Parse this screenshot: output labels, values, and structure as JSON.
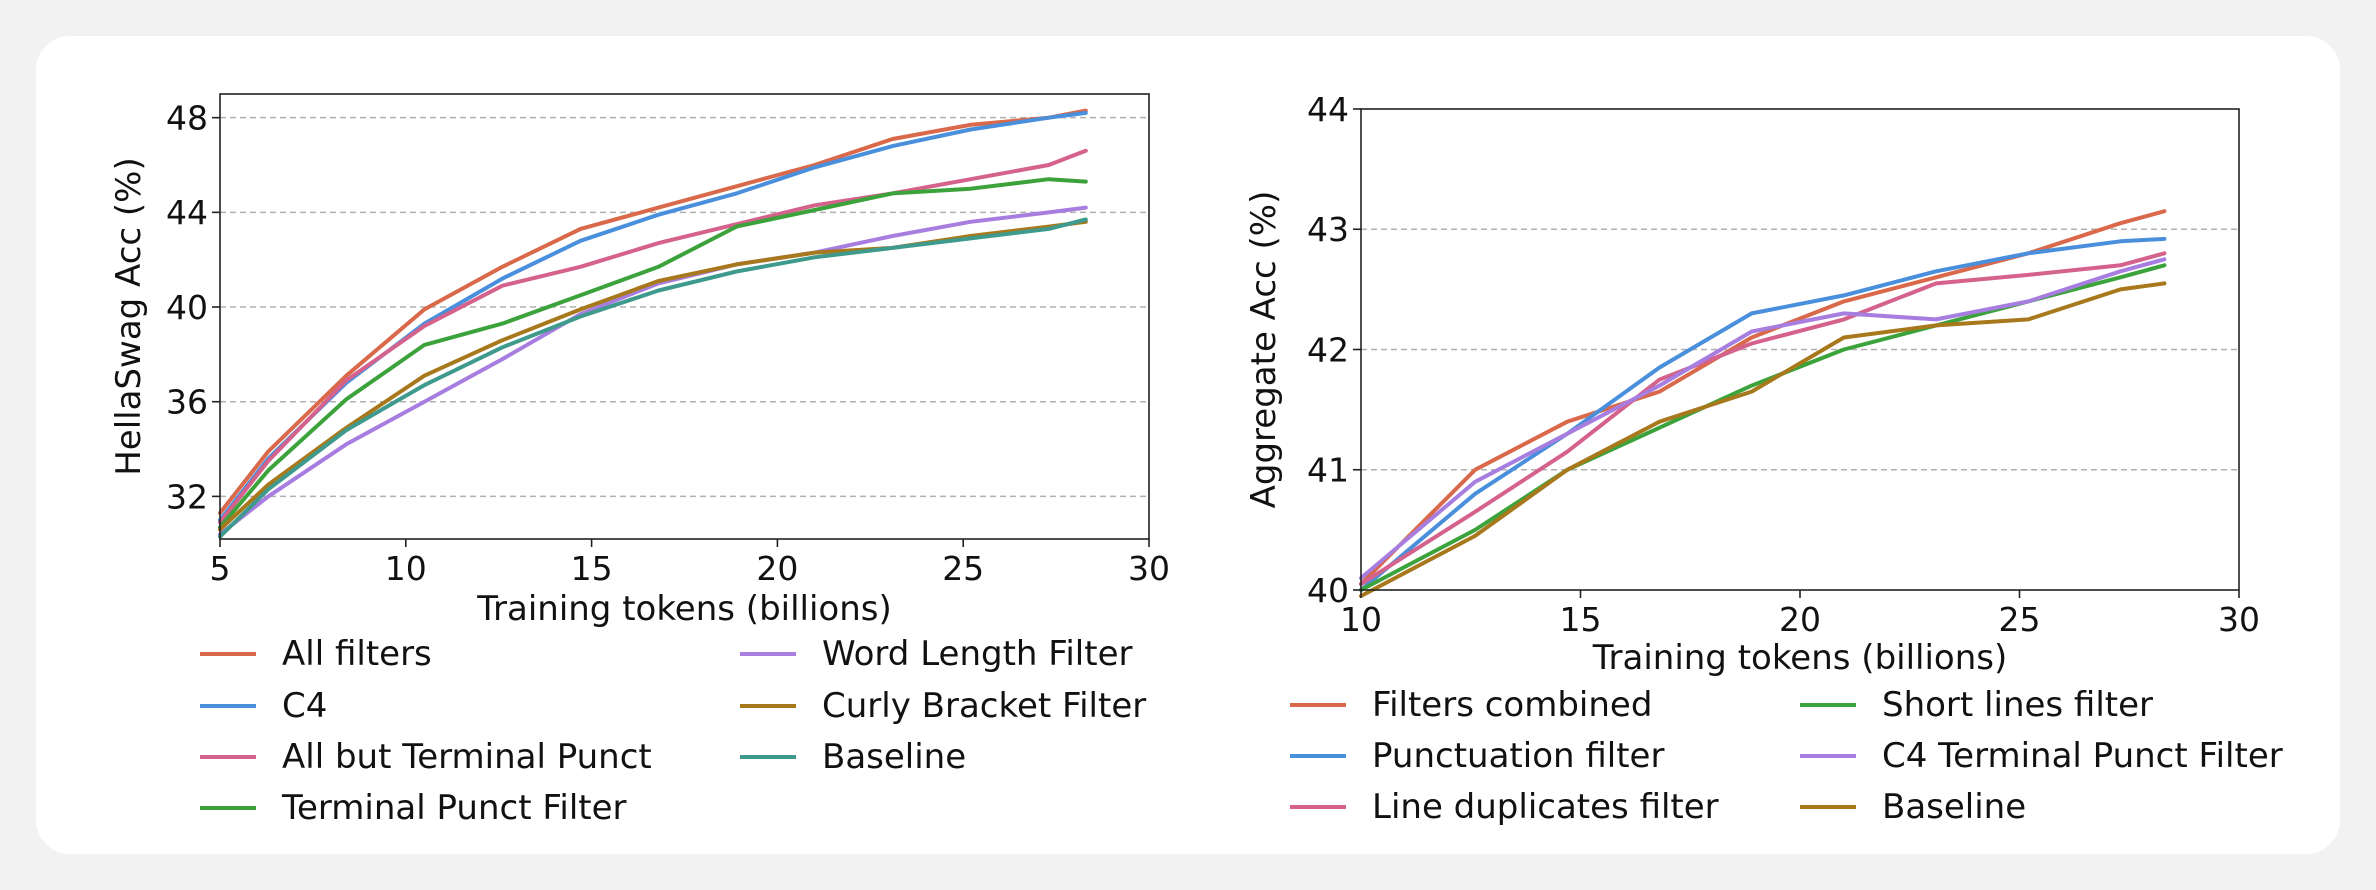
{
  "chart_data": [
    {
      "type": "line",
      "xlabel": "Training tokens (billions)",
      "ylabel": "HellaSwag Acc (%)",
      "xlim": [
        5,
        30
      ],
      "ylim": [
        30.2,
        49
      ],
      "xticks": [
        5,
        10,
        15,
        20,
        25,
        30
      ],
      "yticks": [
        32,
        36,
        40,
        44,
        48
      ],
      "grid": "horizontal dashed",
      "legend": "below, two columns",
      "series": [
        {
          "name": "All filters",
          "color": "#d9694a",
          "x": [
            5,
            6.3,
            8.4,
            10.5,
            12.6,
            14.7,
            16.8,
            18.9,
            21,
            23.1,
            25.2,
            27.3,
            28.3
          ],
          "y": [
            31.3,
            33.9,
            37.1,
            39.9,
            41.7,
            43.3,
            44.2,
            45.1,
            46.0,
            47.1,
            47.7,
            48.0,
            48.3
          ]
        },
        {
          "name": "C4",
          "color": "#4a8fdc",
          "x": [
            5,
            6.3,
            8.4,
            10.5,
            12.6,
            14.7,
            16.8,
            18.9,
            21,
            23.1,
            25.2,
            27.3,
            28.3
          ],
          "y": [
            31.0,
            33.6,
            36.8,
            39.3,
            41.2,
            42.8,
            43.9,
            44.8,
            45.9,
            46.8,
            47.5,
            48.0,
            48.2
          ]
        },
        {
          "name": "All but Terminal Punct",
          "color": "#d4628c",
          "x": [
            5,
            6.3,
            8.4,
            10.5,
            12.6,
            14.7,
            16.8,
            18.9,
            21,
            23.1,
            25.2,
            27.3,
            28.3
          ],
          "y": [
            30.9,
            33.5,
            36.9,
            39.2,
            40.9,
            41.7,
            42.7,
            43.5,
            44.3,
            44.8,
            45.4,
            46.0,
            46.6
          ]
        },
        {
          "name": "Terminal Punct Filter",
          "color": "#3ca33c",
          "x": [
            5,
            6.3,
            8.4,
            10.5,
            12.6,
            14.7,
            16.8,
            18.9,
            21,
            23.1,
            25.2,
            27.3,
            28.3
          ],
          "y": [
            30.7,
            33.1,
            36.1,
            38.4,
            39.3,
            40.5,
            41.7,
            43.4,
            44.1,
            44.8,
            45.0,
            45.4,
            45.3
          ]
        },
        {
          "name": "Word Length Filter",
          "color": "#a77ee0",
          "x": [
            5,
            6.3,
            8.4,
            10.5,
            12.6,
            14.7,
            16.8,
            18.9,
            21,
            23.1,
            25.2,
            27.3,
            28.3
          ],
          "y": [
            30.4,
            32.0,
            34.2,
            36.0,
            37.8,
            39.7,
            41.0,
            41.8,
            42.3,
            43.0,
            43.6,
            44.0,
            44.2
          ]
        },
        {
          "name": "Curly Bracket Filter",
          "color": "#a8781c",
          "x": [
            5,
            6.3,
            8.4,
            10.5,
            12.6,
            14.7,
            16.8,
            18.9,
            21,
            23.1,
            25.2,
            27.3,
            28.3
          ],
          "y": [
            30.6,
            32.5,
            34.9,
            37.1,
            38.6,
            39.9,
            41.1,
            41.8,
            42.3,
            42.5,
            43.0,
            43.4,
            43.6
          ]
        },
        {
          "name": "Baseline",
          "color": "#3e9a8c",
          "x": [
            5,
            6.3,
            8.4,
            10.5,
            12.6,
            14.7,
            16.8,
            18.9,
            21,
            23.1,
            25.2,
            27.3,
            28.3
          ],
          "y": [
            30.3,
            32.3,
            34.8,
            36.7,
            38.3,
            39.6,
            40.7,
            41.5,
            42.1,
            42.5,
            42.9,
            43.3,
            43.7
          ]
        }
      ],
      "legend_layout": [
        [
          "All filters",
          "C4",
          "All but Terminal Punct",
          "Terminal Punct Filter"
        ],
        [
          "Word Length Filter",
          "Curly Bracket Filter",
          "Baseline"
        ]
      ]
    },
    {
      "type": "line",
      "xlabel": "Training tokens (billions)",
      "ylabel": "Aggregate Acc (%)",
      "xlim": [
        10,
        30
      ],
      "ylim": [
        40,
        44
      ],
      "xticks": [
        10,
        15,
        20,
        25,
        30
      ],
      "yticks": [
        40,
        41,
        42,
        43,
        44
      ],
      "grid": "horizontal dashed",
      "legend": "below, two columns",
      "series": [
        {
          "name": "Filters combined",
          "color": "#d9694a",
          "x": [
            10,
            12.6,
            14.7,
            16.8,
            18.9,
            21,
            23.1,
            25.2,
            27.3,
            28.3
          ],
          "y": [
            40.05,
            41.0,
            41.4,
            41.65,
            42.1,
            42.4,
            42.6,
            42.8,
            43.05,
            43.15
          ]
        },
        {
          "name": "Punctuation filter",
          "color": "#4a8fdc",
          "x": [
            10,
            12.6,
            14.7,
            16.8,
            18.9,
            21,
            23.1,
            25.2,
            27.3,
            28.3
          ],
          "y": [
            40.0,
            40.8,
            41.3,
            41.85,
            42.3,
            42.45,
            42.65,
            42.8,
            42.9,
            42.92
          ]
        },
        {
          "name": "Line duplicates filter",
          "color": "#d4628c",
          "x": [
            10,
            12.6,
            14.7,
            16.8,
            18.9,
            21,
            23.1,
            25.2,
            27.3,
            28.3
          ],
          "y": [
            40.05,
            40.65,
            41.15,
            41.75,
            42.05,
            42.25,
            42.55,
            42.62,
            42.7,
            42.8
          ]
        },
        {
          "name": "Short lines filter",
          "color": "#3ca33c",
          "x": [
            10,
            12.6,
            14.7,
            16.8,
            18.9,
            21,
            23.1,
            25.2,
            27.3,
            28.3
          ],
          "y": [
            40.0,
            40.5,
            41.0,
            41.35,
            41.7,
            42.0,
            42.2,
            42.4,
            42.6,
            42.7
          ]
        },
        {
          "name": "C4 Terminal Punct Filter",
          "color": "#a77ee0",
          "x": [
            10,
            12.6,
            14.7,
            16.8,
            18.9,
            21,
            23.1,
            25.2,
            27.3,
            28.3
          ],
          "y": [
            40.1,
            40.9,
            41.3,
            41.7,
            42.15,
            42.3,
            42.25,
            42.4,
            42.65,
            42.75
          ]
        },
        {
          "name": "Baseline",
          "color": "#a8781c",
          "x": [
            10,
            12.6,
            14.7,
            16.8,
            18.9,
            21,
            23.1,
            25.2,
            27.3,
            28.3
          ],
          "y": [
            39.95,
            40.45,
            41.0,
            41.4,
            41.65,
            42.1,
            42.2,
            42.25,
            42.5,
            42.55
          ]
        }
      ],
      "legend_layout": [
        [
          "Filters combined",
          "Punctuation filter",
          "Line duplicates filter"
        ],
        [
          "Short lines filter",
          "C4 Terminal Punct Filter",
          "Baseline"
        ]
      ]
    }
  ]
}
